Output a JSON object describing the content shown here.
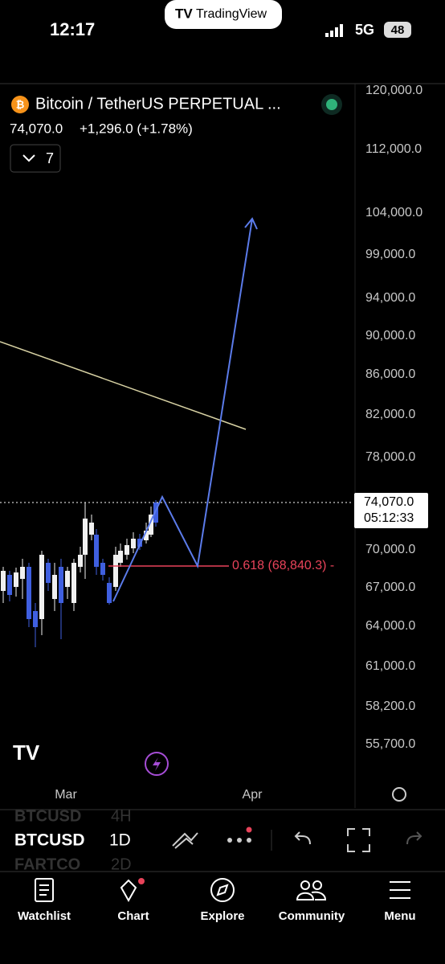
{
  "status_bar": {
    "time": "12:17",
    "network": "5G",
    "battery": "48"
  },
  "app_pill": "TradingView",
  "header": {
    "symbol": "Bitcoin / TetherUS PERPETUAL ...",
    "price": "74,070.0",
    "change": "+1,296.0 (+1.78%)",
    "indicators_count": "7"
  },
  "price_axis": [
    "120,000.0",
    "112,000.0",
    "104,000.0",
    "99,000.0",
    "94,000.0",
    "90,000.0",
    "86,000.0",
    "82,000.0",
    "78,000.0",
    "70,000.0",
    "67,000.0",
    "64,000.0",
    "61,000.0",
    "58,200.0",
    "55,700.0"
  ],
  "last_price": {
    "price": "74,070.0",
    "countdown": "05:12:33"
  },
  "fib_label": "0.618 (68,840.3) -",
  "time_axis": [
    "Mar",
    "Apr"
  ],
  "toolbar": {
    "symbol_prev": "BTCUSD",
    "symbol": "BTCUSD",
    "symbol_next": "FARTCO",
    "interval_prev": "4H",
    "interval": "1D",
    "interval_next": "2D"
  },
  "tabs": [
    "Watchlist",
    "Chart",
    "Explore",
    "Community",
    "Menu"
  ]
}
